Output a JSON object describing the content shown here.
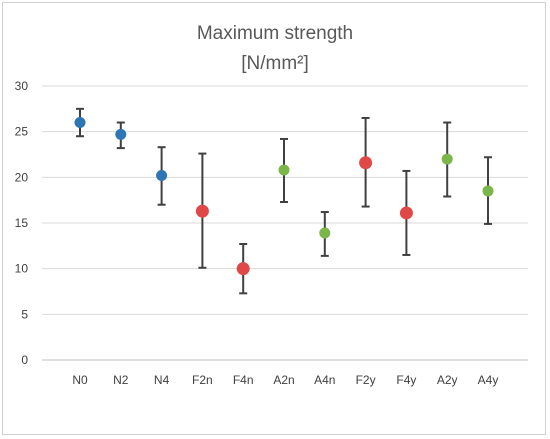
{
  "chart_data": {
    "type": "scatter",
    "title_line1": "Maximum strength",
    "title_line2": "[N/mm²]",
    "xlabel": "",
    "ylabel": "",
    "ylim": [
      0,
      30
    ],
    "yticks": [
      0,
      5,
      10,
      15,
      20,
      25,
      30
    ],
    "grid": true,
    "legend": "none",
    "categories": [
      "N0",
      "N2",
      "N4",
      "F2n",
      "F4n",
      "A2n",
      "A4n",
      "F2y",
      "F4y",
      "A2y",
      "A4y"
    ],
    "values": [
      26.0,
      24.7,
      20.2,
      16.3,
      10.0,
      20.8,
      13.9,
      21.6,
      16.1,
      22.0,
      18.5
    ],
    "error_low": [
      24.5,
      23.2,
      17.0,
      10.1,
      7.3,
      17.3,
      11.4,
      16.8,
      11.5,
      17.9,
      14.9
    ],
    "error_high": [
      27.5,
      26.0,
      23.3,
      22.6,
      12.7,
      24.2,
      16.2,
      26.5,
      20.7,
      26.0,
      22.2
    ],
    "colors": [
      "#2e75b6",
      "#2e75b6",
      "#2e75b6",
      "#e04848",
      "#e04848",
      "#7ab648",
      "#7ab648",
      "#e04848",
      "#e04848",
      "#7ab648",
      "#7ab648"
    ],
    "marker_sizes": [
      "medium",
      "medium",
      "medium",
      "large",
      "large",
      "medium",
      "medium",
      "large",
      "large",
      "medium",
      "medium"
    ],
    "gridline_color": "#d9d9d9",
    "errorbar_color": "#404040"
  }
}
